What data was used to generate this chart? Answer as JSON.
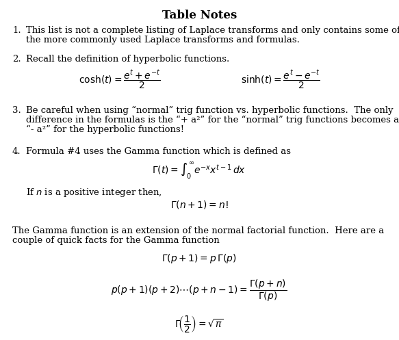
{
  "title": "Table Notes",
  "bg_color": "#ffffff",
  "text_color": "#000000",
  "title_fontsize": 12,
  "body_fontsize": 9.5,
  "math_fontsize": 10,
  "figsize": [
    5.83,
    4.97
  ],
  "dpi": 100
}
